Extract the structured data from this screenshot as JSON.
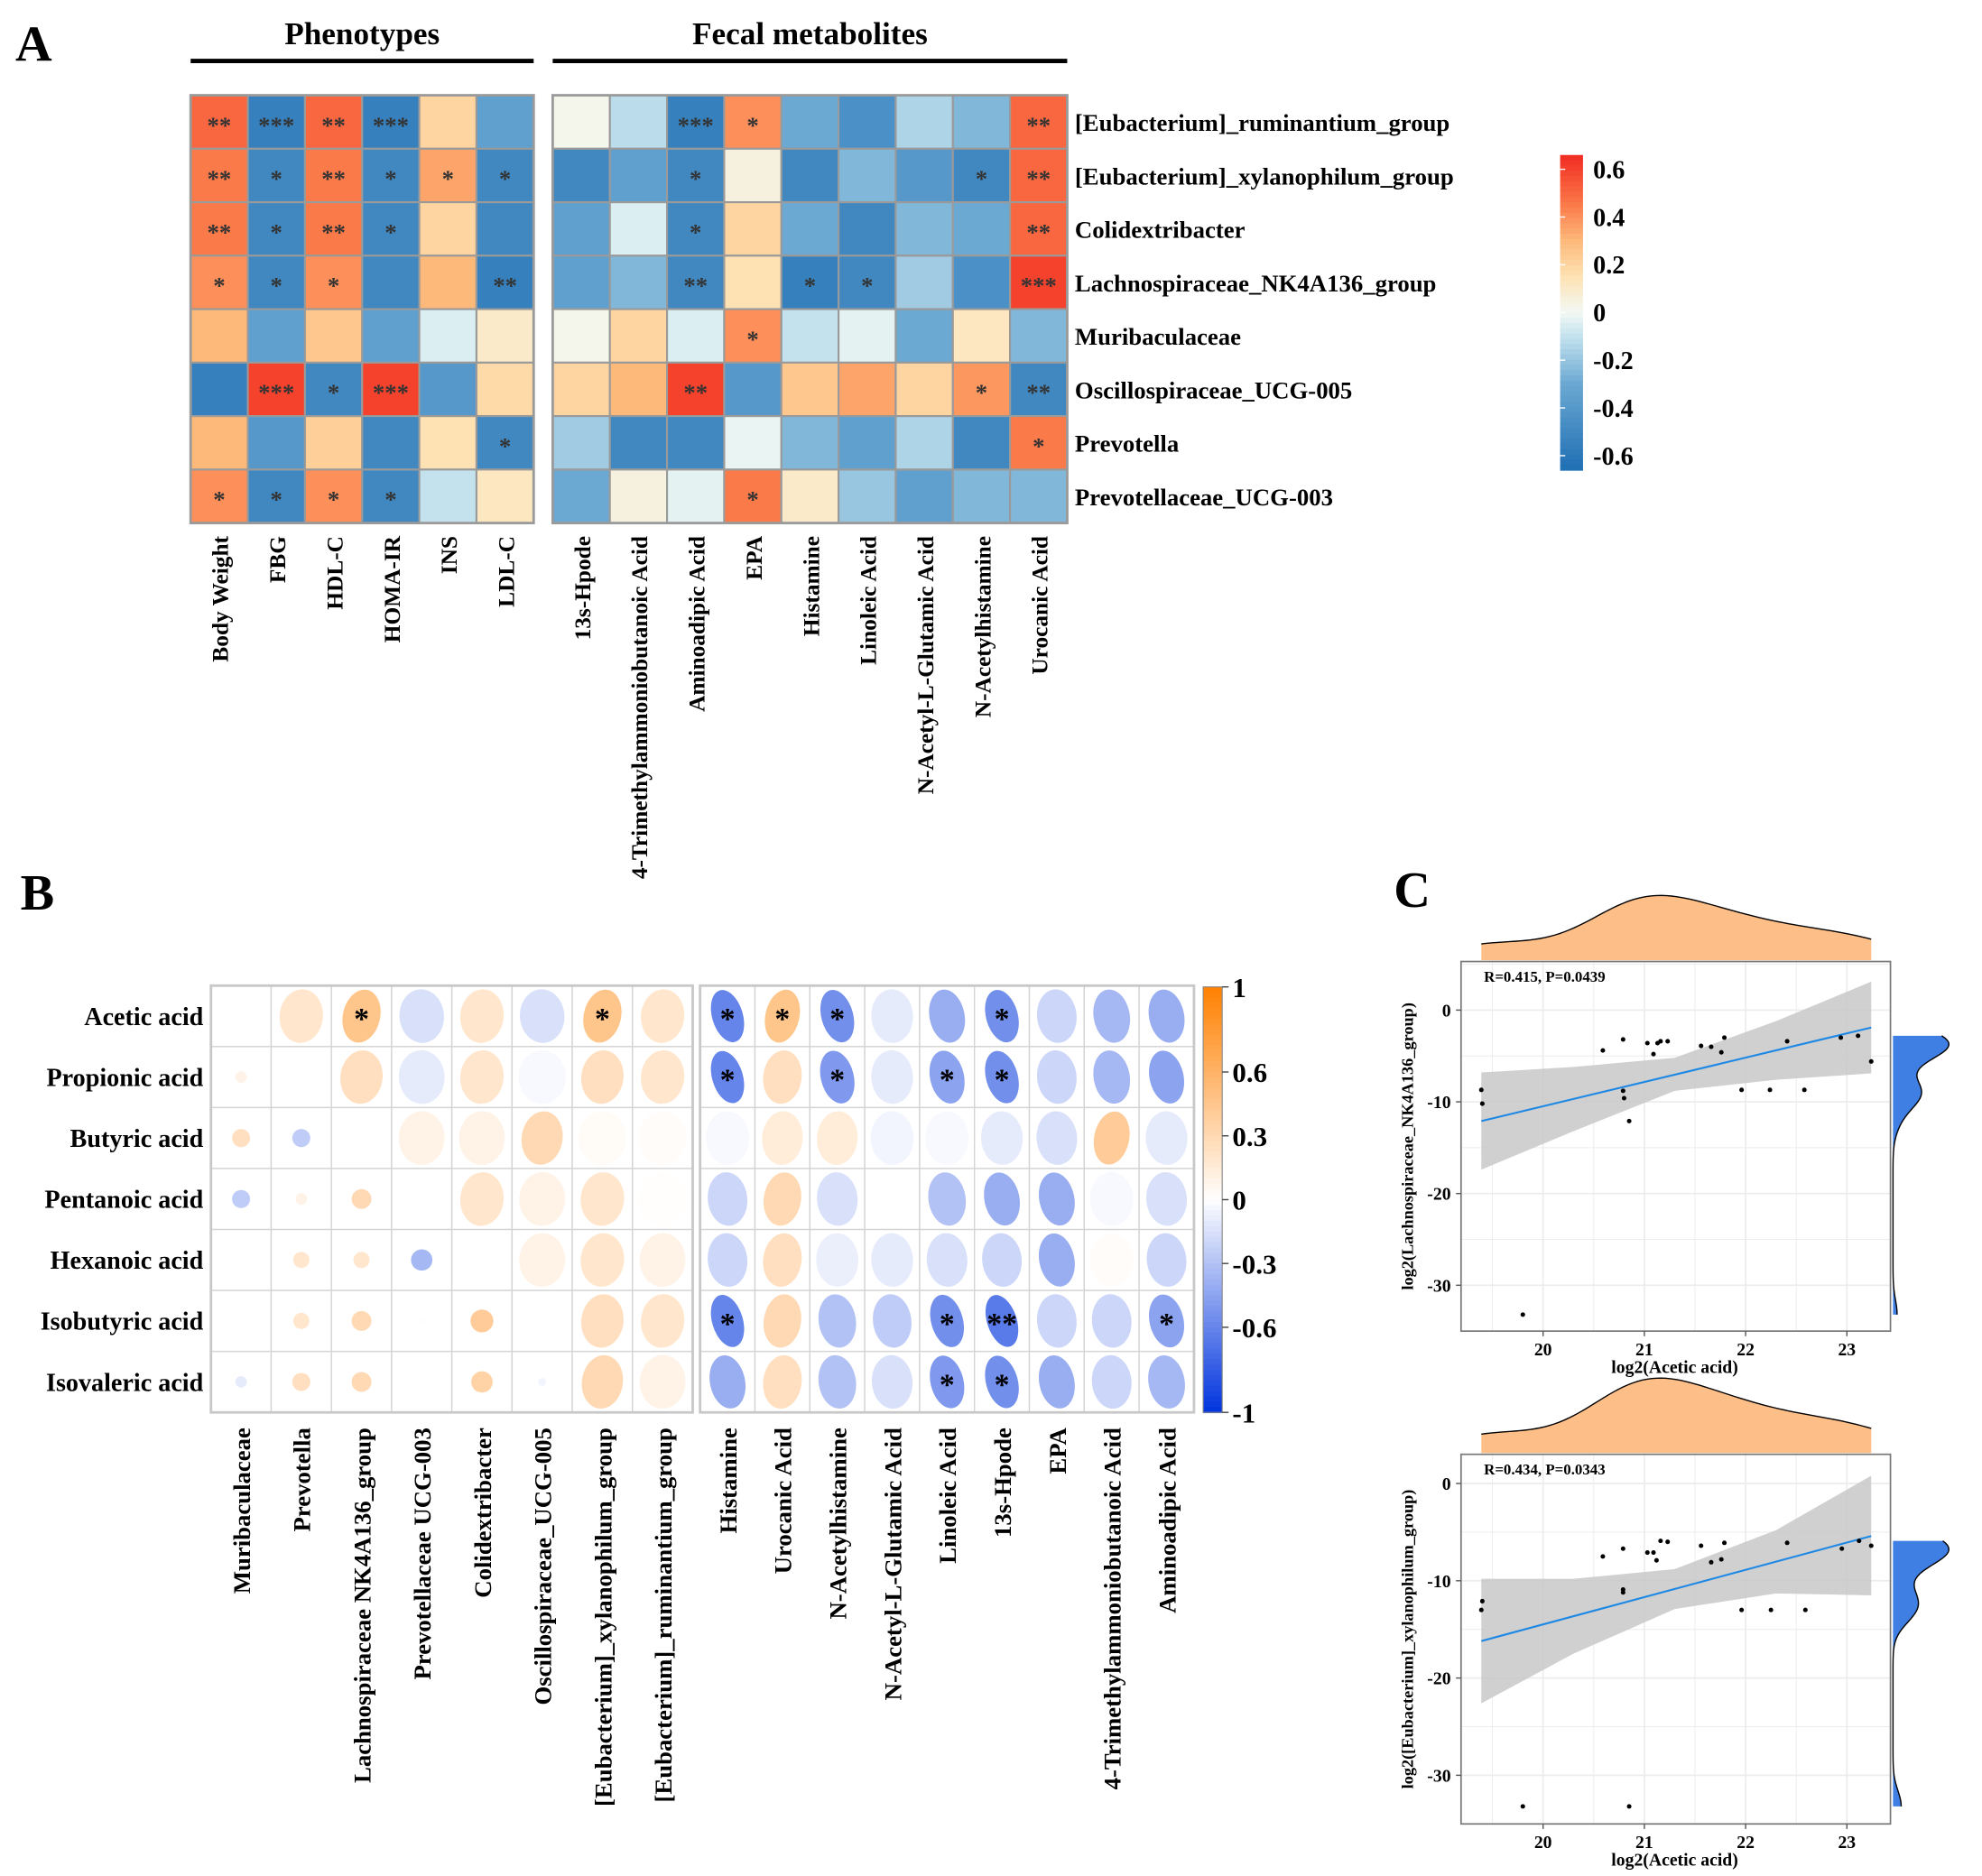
{
  "panel_letters": {
    "a": "A",
    "b": "B",
    "c": "C"
  },
  "chart_data": [
    {
      "type": "heatmap",
      "panel": "A",
      "rows": [
        "[Eubacterium]_ruminantium_group",
        "[Eubacterium]_xylanophilum_group",
        "Colidextribacter",
        "Lachnospiraceae_NK4A136_group",
        "Muribaculaceae",
        "Oscillospiraceae_UCG-005",
        "Prevotella",
        "Prevotellaceae_UCG-003"
      ],
      "groups": [
        {
          "title": "Phenotypes",
          "columns": [
            "Body Weight",
            "FBG",
            "HDL-C",
            "HOMA-IR",
            "INS",
            "LDL-C"
          ],
          "values": [
            [
              0.5,
              -0.55,
              0.5,
              -0.55,
              0.2,
              -0.35
            ],
            [
              0.45,
              -0.5,
              0.45,
              -0.5,
              0.35,
              -0.5
            ],
            [
              0.45,
              -0.5,
              0.45,
              -0.5,
              0.2,
              -0.5
            ],
            [
              0.4,
              -0.5,
              0.4,
              -0.5,
              0.3,
              -0.55
            ],
            [
              0.3,
              -0.35,
              0.25,
              -0.35,
              -0.05,
              0.1
            ],
            [
              -0.55,
              0.6,
              -0.5,
              0.6,
              -0.4,
              0.18
            ],
            [
              0.3,
              -0.4,
              0.22,
              -0.5,
              0.15,
              -0.5
            ],
            [
              0.4,
              -0.5,
              0.4,
              -0.5,
              -0.1,
              0.12
            ]
          ],
          "stars": [
            [
              "**",
              "***",
              "**",
              "***",
              "",
              ""
            ],
            [
              "**",
              "*",
              "**",
              "*",
              "*",
              "*"
            ],
            [
              "**",
              "*",
              "**",
              "*",
              "",
              ""
            ],
            [
              "*",
              "*",
              "*",
              "",
              "",
              "**"
            ],
            [
              "",
              "",
              "",
              "",
              "",
              ""
            ],
            [
              "",
              "***",
              "*",
              "***",
              "",
              ""
            ],
            [
              "",
              "",
              "",
              "",
              "",
              "*"
            ],
            [
              "*",
              "*",
              "*",
              "*",
              "",
              ""
            ]
          ]
        },
        {
          "title": "Fecal metabolites",
          "columns": [
            "13s-Hpode",
            "4-Trimethylammoniobutanoic Acid",
            "Aminoadipic Acid",
            "EPA",
            "Histamine",
            "Linoleic Acid",
            "N-Acetyl-L-Glutamic Acid",
            "N-Acetylhistamine",
            "Urocanic Acid"
          ],
          "values": [
            [
              0.02,
              -0.12,
              -0.55,
              0.4,
              -0.3,
              -0.45,
              -0.15,
              -0.25,
              0.5
            ],
            [
              -0.5,
              -0.35,
              -0.5,
              0.05,
              -0.5,
              -0.25,
              -0.4,
              -0.5,
              0.5
            ],
            [
              -0.35,
              -0.05,
              -0.5,
              0.2,
              -0.3,
              -0.5,
              -0.25,
              -0.3,
              0.5
            ],
            [
              -0.35,
              -0.25,
              -0.5,
              0.15,
              -0.55,
              -0.5,
              -0.18,
              -0.45,
              0.6
            ],
            [
              0.02,
              0.2,
              -0.05,
              0.4,
              -0.1,
              -0.03,
              -0.3,
              0.12,
              -0.25
            ],
            [
              0.2,
              0.3,
              0.6,
              -0.4,
              0.25,
              0.35,
              0.2,
              0.38,
              -0.5
            ],
            [
              -0.18,
              -0.5,
              -0.5,
              -0.02,
              -0.25,
              -0.35,
              -0.15,
              -0.5,
              0.45
            ],
            [
              -0.3,
              0.05,
              -0.03,
              0.45,
              0.1,
              -0.2,
              -0.35,
              -0.25,
              -0.25
            ]
          ],
          "stars": [
            [
              "",
              "",
              "***",
              "*",
              "",
              "",
              "",
              "",
              "**"
            ],
            [
              "",
              "",
              "*",
              "",
              "",
              "",
              "",
              "*",
              "**"
            ],
            [
              "",
              "",
              "*",
              "",
              "",
              "",
              "",
              "",
              "**"
            ],
            [
              "",
              "",
              "**",
              "",
              "*",
              "*",
              "",
              "",
              "***"
            ],
            [
              "",
              "",
              "",
              "*",
              "",
              "",
              "",
              "",
              ""
            ],
            [
              "",
              "",
              "**",
              "",
              "",
              "",
              "",
              "*",
              "**"
            ],
            [
              "",
              "",
              "",
              "",
              "",
              "",
              "",
              "",
              "*"
            ],
            [
              "",
              "",
              "",
              "*",
              "",
              "",
              "",
              "",
              ""
            ]
          ]
        }
      ],
      "colorbar": {
        "range": [
          -0.66,
          0.66
        ],
        "ticks": [
          0.6,
          0.4,
          0.2,
          0,
          -0.2,
          -0.4,
          -0.6
        ],
        "tick_labels": [
          "0.6",
          "0.4",
          "0.2",
          "0",
          "-0.2",
          "-0.4",
          "-0.6"
        ],
        "stops": [
          [
            -0.66,
            "#1F6FB4"
          ],
          [
            -0.3,
            "#6BA8D2"
          ],
          [
            -0.1,
            "#C4E2EE"
          ],
          [
            0,
            "#F2F9F4"
          ],
          [
            0.15,
            "#FEE2B3"
          ],
          [
            0.3,
            "#FDB97A"
          ],
          [
            0.45,
            "#FB7A4A"
          ],
          [
            0.66,
            "#F22B22"
          ]
        ]
      }
    },
    {
      "type": "heatmap",
      "panel": "B",
      "style": "correlation ellipses (circles in lower triangle of bacteria block)",
      "rows": [
        "Acetic acid",
        "Propionic acid",
        "Butyric acid",
        "Pentanoic acid",
        "Hexanoic acid",
        "Isobutyric acid",
        "Isovaleric acid"
      ],
      "columns": [
        "Muribaculaceae",
        "Prevotella",
        "Lachnospiraceae NK4A136_group",
        "Prevotellaceae UCG-003",
        "Colidextribacter",
        "Oscillospiraceae_UCG-005",
        "[Eubacterium]_xylanophilum_group",
        "[Eubacterium]_ruminantium_group",
        "Histamine",
        "Urocanic Acid",
        "N-Acetylhistamine",
        "N-Acetyl-L-Glutamic Acid",
        "Linoleic Acid",
        "13s-Hpode",
        "EPA",
        "4-Trimethylammoniobutanoic Acid",
        "Aminoadipic Acid"
      ],
      "values": [
        [
          null,
          0.2,
          0.45,
          -0.15,
          0.2,
          -0.15,
          0.45,
          0.2,
          -0.6,
          0.45,
          -0.55,
          -0.1,
          -0.4,
          -0.55,
          -0.2,
          -0.35,
          -0.4
        ],
        [
          0.1,
          null,
          0.25,
          -0.1,
          0.2,
          -0.03,
          0.25,
          0.2,
          -0.6,
          0.25,
          -0.5,
          -0.1,
          -0.45,
          -0.55,
          -0.2,
          -0.35,
          -0.45
        ],
        [
          0.25,
          -0.25,
          null,
          0.1,
          0.1,
          0.3,
          0.03,
          0.02,
          -0.03,
          0.15,
          0.15,
          -0.05,
          -0.03,
          -0.1,
          -0.15,
          0.4,
          -0.1
        ],
        [
          -0.25,
          0.1,
          0.3,
          null,
          0.2,
          0.1,
          0.2,
          0.01,
          -0.2,
          0.3,
          -0.15,
          0.0,
          -0.3,
          -0.4,
          -0.4,
          -0.03,
          -0.15
        ],
        [
          0.0,
          0.2,
          0.2,
          -0.35,
          null,
          0.1,
          0.2,
          0.1,
          -0.2,
          0.25,
          -0.08,
          -0.1,
          -0.15,
          -0.2,
          -0.4,
          0.02,
          -0.2
        ],
        [
          0.0,
          0.2,
          0.3,
          0.02,
          0.4,
          null,
          0.25,
          0.2,
          -0.6,
          0.3,
          -0.3,
          -0.25,
          -0.55,
          -0.65,
          -0.2,
          -0.2,
          -0.45
        ],
        [
          -0.1,
          0.25,
          0.3,
          0.01,
          0.35,
          -0.05,
          0.3,
          0.1,
          -0.4,
          0.25,
          -0.3,
          -0.15,
          -0.5,
          -0.55,
          -0.4,
          -0.2,
          -0.35
        ]
      ],
      "stars": [
        [
          "",
          "",
          "*",
          "",
          "",
          "",
          "*",
          "",
          "*",
          "*",
          "*",
          "",
          "",
          "*",
          "",
          "",
          ""
        ],
        [
          "",
          "",
          "",
          "",
          "",
          "",
          "",
          "",
          "*",
          "",
          "*",
          "",
          "*",
          "*",
          "",
          "",
          ""
        ],
        [
          "",
          "",
          "",
          "",
          "",
          "",
          "",
          "",
          "",
          "",
          "",
          "",
          "",
          "",
          "",
          "",
          ""
        ],
        [
          "",
          "",
          "",
          "",
          "",
          "",
          "",
          "",
          "",
          "",
          "",
          "",
          "",
          "",
          "",
          "",
          ""
        ],
        [
          "",
          "",
          "",
          "",
          "",
          "",
          "",
          "",
          "",
          "",
          "",
          "",
          "",
          "",
          "",
          "",
          ""
        ],
        [
          "",
          "",
          "",
          "",
          "",
          "",
          "",
          "",
          "*",
          "",
          "",
          "",
          "*",
          "**",
          "",
          "",
          "*"
        ],
        [
          "",
          "",
          "",
          "",
          "",
          "",
          "",
          "",
          "",
          "",
          "",
          "",
          "*",
          "*",
          "",
          "",
          ""
        ]
      ],
      "colorbar": {
        "range": [
          -1,
          1
        ],
        "ticks": [
          1,
          0.6,
          0.3,
          0,
          -0.3,
          -0.6,
          -1
        ],
        "tick_labels": [
          "1",
          "0.6",
          "0.3",
          "0",
          "-0.3",
          "-0.6",
          "-1"
        ],
        "negative_color": "#0033DD",
        "positive_color": "#FF8000"
      }
    },
    {
      "type": "scatter",
      "panel": "C",
      "annotation": "R=0.415, P=0.0439",
      "xlabel": "log2(Acetic acid)",
      "ylabel": "log2(Lachnospiraceae_NK4A136_group)",
      "xlim": [
        19.19,
        23.43
      ],
      "ylim": [
        -35,
        5.3
      ],
      "xticks": [
        20,
        21,
        22,
        23
      ],
      "yticks": [
        0,
        -10,
        -20,
        -30
      ],
      "x": [
        19.39,
        19.4,
        19.8,
        20.59,
        20.79,
        20.79,
        20.8,
        20.85,
        21.03,
        21.09,
        21.13,
        21.16,
        21.23,
        21.56,
        21.66,
        21.76,
        21.79,
        21.96,
        22.24,
        22.41,
        22.58,
        22.94,
        23.11,
        23.24
      ],
      "y": [
        -8.7,
        -10.2,
        -33.2,
        -4.4,
        -3.2,
        -8.8,
        -9.6,
        -12.1,
        -3.6,
        -4.8,
        -3.6,
        -3.4,
        -3.4,
        -3.9,
        -4.0,
        -4.6,
        -3.0,
        -8.7,
        -8.7,
        -3.4,
        -8.7,
        -3.0,
        -2.8,
        -5.6
      ],
      "fit_line": {
        "x": [
          19.39,
          23.24
        ],
        "y": [
          -12.1,
          -1.9
        ]
      },
      "ci_band": {
        "x": [
          19.39,
          20.3,
          21.3,
          22.3,
          23.24
        ],
        "lower": [
          -17.4,
          -13.2,
          -8.8,
          -7.6,
          -6.9
        ],
        "upper": [
          -6.8,
          -6.2,
          -5.2,
          -1.2,
          3.1
        ]
      },
      "colors": {
        "points": "#000000",
        "line": "#1E88E5",
        "band": "#C8C8C8",
        "x_density": "#FDBF87",
        "y_density": "#3F7FE3"
      },
      "grid": true
    },
    {
      "type": "scatter",
      "panel": "C",
      "annotation": "R=0.434, P=0.0343",
      "xlabel": "log2(Acetic acid)",
      "ylabel": "log2([Eubacterium]_xylanophilum_group)",
      "xlim": [
        19.19,
        23.43
      ],
      "ylim": [
        -35,
        3
      ],
      "xticks": [
        20,
        21,
        22,
        23
      ],
      "yticks": [
        0,
        -10,
        -20,
        -30
      ],
      "x": [
        19.39,
        19.4,
        19.8,
        20.59,
        20.79,
        20.79,
        20.79,
        20.85,
        21.03,
        21.09,
        21.12,
        21.16,
        21.23,
        21.56,
        21.66,
        21.76,
        21.79,
        21.96,
        22.25,
        22.41,
        22.59,
        22.95,
        23.12,
        23.24
      ],
      "y": [
        -13.0,
        -12.1,
        -33.2,
        -7.5,
        -6.7,
        -10.9,
        -11.2,
        -33.2,
        -7.1,
        -7.1,
        -7.9,
        -5.9,
        -6.0,
        -6.4,
        -8.1,
        -7.8,
        -6.1,
        -13.0,
        -13.0,
        -6.1,
        -13.0,
        -6.7,
        -5.9,
        -6.4
      ],
      "fit_line": {
        "x": [
          19.39,
          23.24
        ],
        "y": [
          -16.2,
          -5.4
        ]
      },
      "ci_band": {
        "x": [
          19.39,
          20.3,
          21.3,
          22.3,
          23.24
        ],
        "lower": [
          -22.6,
          -17.5,
          -12.9,
          -11.3,
          -11.5
        ],
        "upper": [
          -9.8,
          -9.8,
          -8.8,
          -4.8,
          0.8
        ]
      },
      "colors": {
        "points": "#000000",
        "line": "#1E88E5",
        "band": "#C8C8C8",
        "x_density": "#FDBF87",
        "y_density": "#3F7FE3"
      },
      "grid": true
    }
  ]
}
